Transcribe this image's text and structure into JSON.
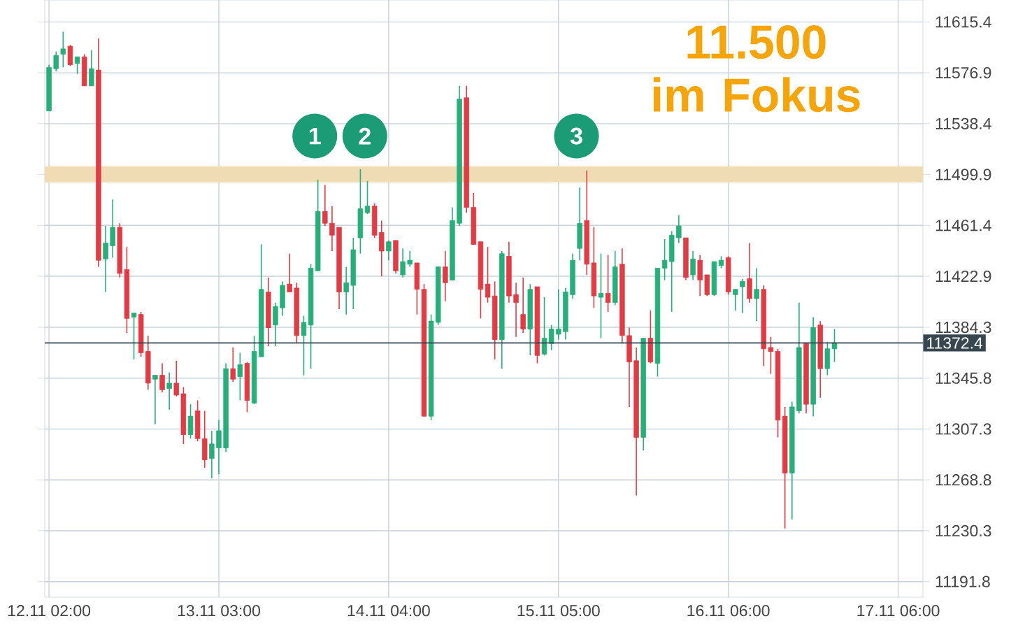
{
  "chart_data": {
    "type": "candlestick",
    "title": "11.500 im Fokus",
    "categories": [
      "12.11 02:00",
      null,
      null,
      null,
      null,
      null,
      null,
      null,
      null,
      null,
      null,
      null,
      null,
      null,
      null,
      null,
      null,
      null,
      null,
      null,
      null,
      null,
      null,
      null,
      "13.11 03:00",
      null,
      null,
      null,
      null,
      null,
      null,
      null,
      null,
      null,
      null,
      null,
      null,
      null,
      null,
      null,
      null,
      null,
      null,
      null,
      null,
      null,
      null,
      null,
      "14.11 04:00",
      null,
      null,
      null,
      null,
      null,
      null,
      null,
      null,
      null,
      null,
      null,
      null,
      null,
      null,
      null,
      null,
      null,
      null,
      null,
      null,
      null,
      null,
      null,
      "15.11 05:00",
      null,
      null,
      null,
      null,
      null,
      null,
      null,
      null,
      null,
      null,
      null,
      null,
      null,
      null,
      null,
      null,
      null,
      null,
      null,
      null,
      null,
      null,
      null,
      "16.11 06:00",
      null,
      null,
      null,
      null,
      null,
      null,
      null,
      null,
      null,
      null,
      null,
      null,
      null,
      null,
      null,
      null,
      null,
      null,
      null,
      null,
      null,
      null,
      null,
      "17.11 06:00",
      null,
      null,
      null
    ],
    "ohlc": [
      [
        11548,
        11583,
        11548,
        11581
      ],
      [
        11580,
        11593,
        11578,
        11590
      ],
      [
        11591,
        11608,
        11581,
        11595
      ],
      [
        11597,
        11598,
        11582,
        11583
      ],
      [
        11584,
        11589,
        11576,
        11589
      ],
      [
        11589,
        11591,
        11567,
        11567
      ],
      [
        11567,
        11594,
        11567,
        11580
      ],
      [
        11579,
        11603,
        11430,
        11435
      ],
      [
        11436,
        11461,
        11411,
        11448
      ],
      [
        11446,
        11481,
        11437,
        11460
      ],
      [
        11460,
        11463,
        11422,
        11425
      ],
      [
        11428,
        11445,
        11380,
        11391
      ],
      [
        11392,
        11395,
        11360,
        11395
      ],
      [
        11394,
        11396,
        11362,
        11365
      ],
      [
        11366,
        11378,
        11337,
        11342
      ],
      [
        11345,
        11348,
        11311,
        11348
      ],
      [
        11348,
        11357,
        11335,
        11337
      ],
      [
        11338,
        11350,
        11322,
        11342
      ],
      [
        11342,
        11359,
        11332,
        11333
      ],
      [
        11334,
        11339,
        11296,
        11303
      ],
      [
        11303,
        11326,
        11300,
        11317
      ],
      [
        11321,
        11329,
        11298,
        11300
      ],
      [
        11300,
        11321,
        11278,
        11284
      ],
      [
        11285,
        11306,
        11270,
        11296
      ],
      [
        11293,
        11314,
        11273,
        11306
      ],
      [
        11293,
        11357,
        11290,
        11353
      ],
      [
        11353,
        11369,
        11343,
        11345
      ],
      [
        11347,
        11365,
        11329,
        11356
      ],
      [
        11357,
        11358,
        11320,
        11329
      ],
      [
        11327,
        11378,
        11326,
        11366
      ],
      [
        11362,
        11447,
        11362,
        11413
      ],
      [
        11411,
        11422,
        11370,
        11384
      ],
      [
        11386,
        11403,
        11370,
        11400
      ],
      [
        11399,
        11419,
        11393,
        11416
      ],
      [
        11417,
        11440,
        11411,
        11411
      ],
      [
        11414,
        11418,
        11372,
        11378
      ],
      [
        11378,
        11393,
        11348,
        11388
      ],
      [
        11386,
        11432,
        11353,
        11429
      ],
      [
        11427,
        11496,
        11427,
        11472
      ],
      [
        11472,
        11492,
        11461,
        11463
      ],
      [
        11463,
        11476,
        11442,
        11454
      ],
      [
        11460,
        11460,
        11398,
        11411
      ],
      [
        11411,
        11430,
        11394,
        11418
      ],
      [
        11416,
        11452,
        11398,
        11443
      ],
      [
        11452,
        11504,
        11440,
        11474
      ],
      [
        11471,
        11495,
        11470,
        11476
      ],
      [
        11476,
        11478,
        11452,
        11454
      ],
      [
        11456,
        11465,
        11423,
        11442
      ],
      [
        11442,
        11450,
        11435,
        11449
      ],
      [
        11450,
        11450,
        11425,
        11427
      ],
      [
        11424,
        11444,
        11422,
        11434
      ],
      [
        11432,
        11442,
        11430,
        11435
      ],
      [
        11433,
        11433,
        11394,
        11413
      ],
      [
        11413,
        11417,
        11317,
        11317
      ],
      [
        11317,
        11394,
        11314,
        11389
      ],
      [
        11388,
        11430,
        11386,
        11430
      ],
      [
        11430,
        11442,
        11404,
        11418
      ],
      [
        11420,
        11475,
        11420,
        11465
      ],
      [
        11463,
        11567,
        11461,
        11557
      ],
      [
        11558,
        11567,
        11471,
        11475
      ],
      [
        11475,
        11486,
        11447,
        11447
      ],
      [
        11449,
        11449,
        11391,
        11413
      ],
      [
        11417,
        11445,
        11403,
        11407
      ],
      [
        11408,
        11419,
        11360,
        11375
      ],
      [
        11375,
        11442,
        11353,
        11440
      ],
      [
        11438,
        11449,
        11403,
        11408
      ],
      [
        11409,
        11418,
        11377,
        11403
      ],
      [
        11394,
        11422,
        11380,
        11383
      ],
      [
        11383,
        11417,
        11363,
        11413
      ],
      [
        11415,
        11415,
        11357,
        11363
      ],
      [
        11364,
        11407,
        11363,
        11376
      ],
      [
        11372,
        11386,
        11367,
        11383
      ],
      [
        11379,
        11413,
        11375,
        11383
      ],
      [
        11381,
        11414,
        11375,
        11411
      ],
      [
        11409,
        11440,
        11406,
        11435
      ],
      [
        11444,
        11490,
        11435,
        11463
      ],
      [
        11465,
        11503,
        11424,
        11432
      ],
      [
        11433,
        11460,
        11399,
        11408
      ],
      [
        11407,
        11440,
        11376,
        11410
      ],
      [
        11410,
        11439,
        11396,
        11403
      ],
      [
        11403,
        11442,
        11401,
        11430
      ],
      [
        11432,
        11444,
        11372,
        11378
      ],
      [
        11378,
        11384,
        11324,
        11358
      ],
      [
        11359,
        11369,
        11257,
        11301
      ],
      [
        11301,
        11376,
        11291,
        11376
      ],
      [
        11376,
        11397,
        11357,
        11358
      ],
      [
        11357,
        11429,
        11347,
        11429
      ],
      [
        11429,
        11451,
        11420,
        11435
      ],
      [
        11434,
        11457,
        11396,
        11454
      ],
      [
        11452,
        11469,
        11448,
        11461
      ],
      [
        11452,
        11452,
        11420,
        11422
      ],
      [
        11424,
        11442,
        11420,
        11436
      ],
      [
        11435,
        11439,
        11408,
        11420
      ],
      [
        11424,
        11424,
        11408,
        11409
      ],
      [
        11409,
        11434,
        11408,
        11434
      ],
      [
        11431,
        11438,
        11429,
        11435
      ],
      [
        11437,
        11438,
        11409,
        11411
      ],
      [
        11409,
        11413,
        11397,
        11413
      ],
      [
        11415,
        11421,
        11395,
        11419
      ],
      [
        11421,
        11448,
        11403,
        11406
      ],
      [
        11406,
        11429,
        11389,
        11413
      ],
      [
        11413,
        11416,
        11355,
        11368
      ],
      [
        11369,
        11377,
        11349,
        11366
      ],
      [
        11366,
        11368,
        11301,
        11314
      ],
      [
        11317,
        11324,
        11232,
        11274
      ],
      [
        11274,
        11328,
        11239,
        11324
      ],
      [
        11321,
        11403,
        11319,
        11369
      ],
      [
        11372,
        11372,
        11319,
        11326
      ],
      [
        11326,
        11392,
        11317,
        11384
      ],
      [
        11386,
        11389,
        11331,
        11353
      ],
      [
        11353,
        11373,
        11348,
        11368
      ],
      [
        11368,
        11383,
        11358,
        11372.4
      ],
      null,
      null,
      null,
      null,
      null,
      null,
      null,
      null,
      null,
      null,
      null,
      null
    ],
    "colors": [
      "#27ae7a",
      "#27ae7a",
      "#27ae7a",
      "#e03c46",
      "#27ae7a",
      "#e03c46",
      "#27ae7a",
      "#e03c46",
      "#27ae7a",
      "#27ae7a",
      "#e03c46",
      "#e03c46",
      "#27ae7a",
      "#e03c46",
      "#e03c46",
      "#27ae7a",
      "#e03c46",
      "#27ae7a",
      "#e03c46",
      "#e03c46",
      "#27ae7a",
      "#e03c46",
      "#e03c46",
      "#27ae7a",
      "#27ae7a",
      "#27ae7a",
      "#e03c46",
      "#27ae7a",
      "#e03c46",
      "#27ae7a",
      "#27ae7a",
      "#e03c46",
      "#27ae7a",
      "#27ae7a",
      "#e03c46",
      "#e03c46",
      "#27ae7a",
      "#27ae7a",
      "#27ae7a",
      "#e03c46",
      "#e03c46",
      "#e03c46",
      "#27ae7a",
      "#27ae7a",
      "#27ae7a",
      "#27ae7a",
      "#e03c46",
      "#e03c46",
      "#27ae7a",
      "#e03c46",
      "#27ae7a",
      "#27ae7a",
      "#e03c46",
      "#e03c46",
      "#27ae7a",
      "#27ae7a",
      "#e03c46",
      "#27ae7a",
      "#27ae7a",
      "#e03c46",
      "#e03c46",
      "#e03c46",
      "#e03c46",
      "#e03c46",
      "#27ae7a",
      "#e03c46",
      "#e03c46",
      "#e03c46",
      "#27ae7a",
      "#e03c46",
      "#27ae7a",
      "#27ae7a",
      "#27ae7a",
      "#27ae7a",
      "#27ae7a",
      "#27ae7a",
      "#e03c46",
      "#e03c46",
      "#27ae7a",
      "#e03c46",
      "#27ae7a",
      "#e03c46",
      "#e03c46",
      "#e03c46",
      "#27ae7a",
      "#e03c46",
      "#27ae7a",
      "#27ae7a",
      "#27ae7a",
      "#27ae7a",
      "#e03c46",
      "#27ae7a",
      "#e03c46",
      "#e03c46",
      "#27ae7a",
      "#27ae7a",
      "#e03c46",
      "#27ae7a",
      "#27ae7a",
      "#e03c46",
      "#27ae7a",
      "#e03c46",
      "#e03c46",
      "#e03c46",
      "#e03c46",
      "#27ae7a",
      "#27ae7a",
      "#e03c46",
      "#27ae7a",
      "#e03c46",
      "#27ae7a",
      "#27ae7a",
      null,
      null,
      null,
      null,
      null,
      null,
      null,
      null,
      null,
      null,
      null,
      null
    ],
    "ylim": [
      11180,
      11632
    ],
    "yticks": [
      11191.8,
      11230.3,
      11268.8,
      11307.3,
      11345.8,
      11384.3,
      11422.9,
      11461.4,
      11499.9,
      11538.4,
      11576.9,
      11615.4
    ],
    "grid": true,
    "bands": [
      {
        "axis": "y",
        "from": 11494,
        "to": 11506,
        "color": "#efdcb4"
      }
    ],
    "ref_lines": [
      {
        "axis": "y",
        "value": 11372.4,
        "label": "11372.4",
        "color": "#37474f"
      }
    ],
    "annotations": [
      {
        "text": "1",
        "y": 11529
      },
      {
        "text": "2",
        "y": 11529
      },
      {
        "text": "3",
        "y": 11529
      }
    ]
  }
}
